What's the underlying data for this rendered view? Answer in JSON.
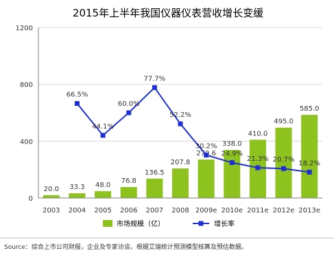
{
  "chart_data": {
    "type": "bar",
    "title": "2015年上半年我国仪器仪表营收增长变缓",
    "categories": [
      "2003",
      "2004",
      "2005",
      "2006",
      "2007",
      "2008",
      "2009e",
      "2010e",
      "2011e",
      "2012e",
      "2013e"
    ],
    "yticks": [
      "0",
      "400",
      "800",
      "1200"
    ],
    "ylim": [
      0,
      1200
    ],
    "grid": true,
    "legend_position": "bottom",
    "series": [
      {
        "name": "市场规模（亿）",
        "type": "bar",
        "color": "#8dc21f",
        "values": [
          20.0,
          33.3,
          48.0,
          76.8,
          136.5,
          207.8,
          270.6,
          338.0,
          410.0,
          495.0,
          585.0
        ],
        "labels": [
          "20.0",
          "33.3",
          "48.0",
          "76.8",
          "136.5",
          "207.8",
          "270.6",
          "338.0",
          "410.0",
          "495.0",
          "585.0"
        ]
      },
      {
        "name": "增长率",
        "type": "line",
        "color": "#1f2fd6",
        "values": [
          null,
          66.5,
          44.1,
          60.0,
          77.7,
          52.2,
          30.2,
          24.9,
          21.3,
          20.7,
          18.2
        ],
        "labels": [
          null,
          "66.5%",
          "44.1%",
          "60.0%",
          "77.7%",
          "52.2%",
          "30.2%",
          "24.9%",
          "21.3%",
          "20.7%",
          "18.2%"
        ]
      }
    ]
  },
  "source": "Source：综合上市公司财报，企业及专家访谈，根据艾瑞统计预测模型核算及预估数据。"
}
